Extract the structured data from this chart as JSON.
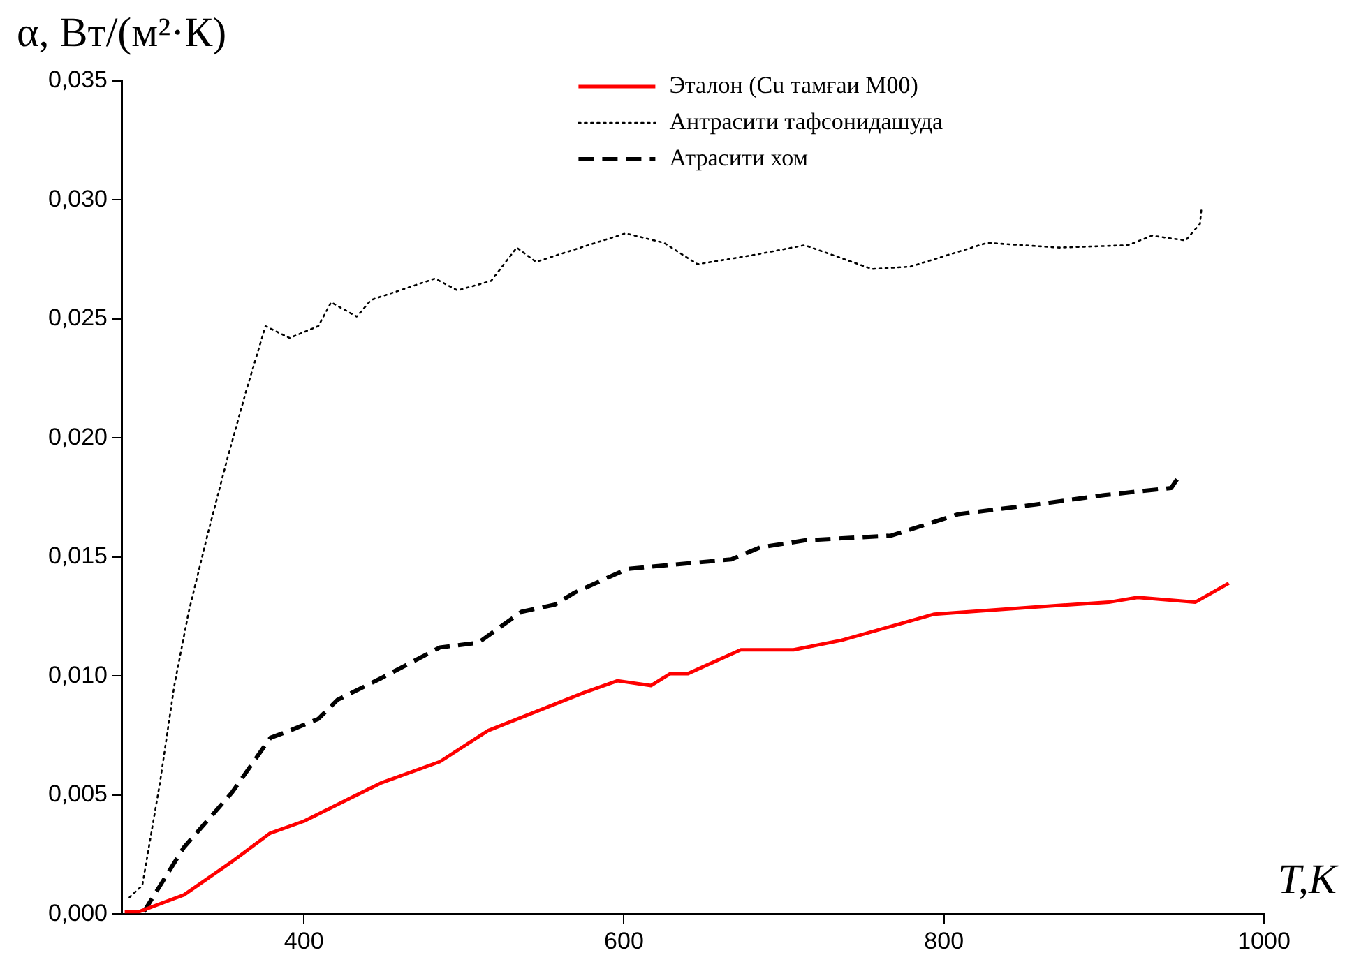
{
  "chart_data": {
    "type": "line",
    "ylabel": "α, Вт/(м²·К)",
    "xlabel": "T,K",
    "xlim": [
      286,
      1000
    ],
    "xticks": [
      400,
      600,
      800,
      1000
    ],
    "ylim": [
      0,
      0.035
    ],
    "yticks": [
      {
        "value": 0,
        "label": "0,000"
      },
      {
        "value": 0.005,
        "label": "0,005"
      },
      {
        "value": 0.01,
        "label": "0,010"
      },
      {
        "value": 0.015,
        "label": "0,015"
      },
      {
        "value": 0.02,
        "label": "0,020"
      },
      {
        "value": 0.025,
        "label": "0,025"
      },
      {
        "value": 0.03,
        "label": "0,030"
      },
      {
        "value": 0.035,
        "label": "0,035"
      }
    ],
    "grid": false,
    "legend": "top",
    "marker": "none",
    "series": [
      {
        "name": "Эталон (Cu тамғаи М00)",
        "color": "#ff0000",
        "line_style": "solid",
        "x": [
          288,
          297,
          325,
          355,
          379,
          400,
          424,
          448,
          485,
          515,
          545,
          575,
          596,
          617,
          629,
          640,
          673,
          706,
          736,
          794,
          857,
          903,
          921,
          957,
          978
        ],
        "values": [
          0.0001,
          0.0001,
          0.0008,
          0.0022,
          0.0034,
          0.0039,
          0.0047,
          0.0055,
          0.0064,
          0.0077,
          0.0085,
          0.0093,
          0.0098,
          0.0096,
          0.0101,
          0.0101,
          0.0111,
          0.0111,
          0.0115,
          0.0126,
          0.0129,
          0.0131,
          0.0133,
          0.0131,
          0.0139
        ]
      },
      {
        "name": "Антрасити тафсонидашуда",
        "color": "#000000",
        "line_style": "dotted",
        "x": [
          291,
          299,
          310,
          319,
          328,
          340,
          352,
          364,
          376,
          391,
          409,
          417,
          433,
          442,
          482,
          496,
          517,
          533,
          545,
          601,
          625,
          646,
          682,
          713,
          755,
          779,
          827,
          872,
          915,
          930,
          951,
          960,
          961
        ],
        "values": [
          0.0007,
          0.0012,
          0.0055,
          0.0096,
          0.0127,
          0.016,
          0.0191,
          0.022,
          0.0247,
          0.0242,
          0.0247,
          0.0257,
          0.0251,
          0.0258,
          0.0267,
          0.0262,
          0.0266,
          0.028,
          0.0274,
          0.0286,
          0.0282,
          0.0273,
          0.0277,
          0.0281,
          0.0271,
          0.0272,
          0.0282,
          0.028,
          0.0281,
          0.0285,
          0.0283,
          0.029,
          0.0297
        ]
      },
      {
        "name": "Атрасити хом",
        "color": "#000000",
        "line_style": "dashed",
        "x": [
          300,
          325,
          355,
          379,
          391,
          409,
          421,
          448,
          485,
          509,
          536,
          557,
          569,
          602,
          667,
          685,
          713,
          767,
          809,
          857,
          900,
          942,
          948
        ],
        "values": [
          0.0001,
          0.0028,
          0.0051,
          0.0074,
          0.0077,
          0.0082,
          0.009,
          0.0099,
          0.0112,
          0.0114,
          0.0127,
          0.013,
          0.0135,
          0.0145,
          0.0149,
          0.0154,
          0.0157,
          0.0159,
          0.0168,
          0.0172,
          0.0176,
          0.0179,
          0.0185
        ]
      }
    ]
  }
}
